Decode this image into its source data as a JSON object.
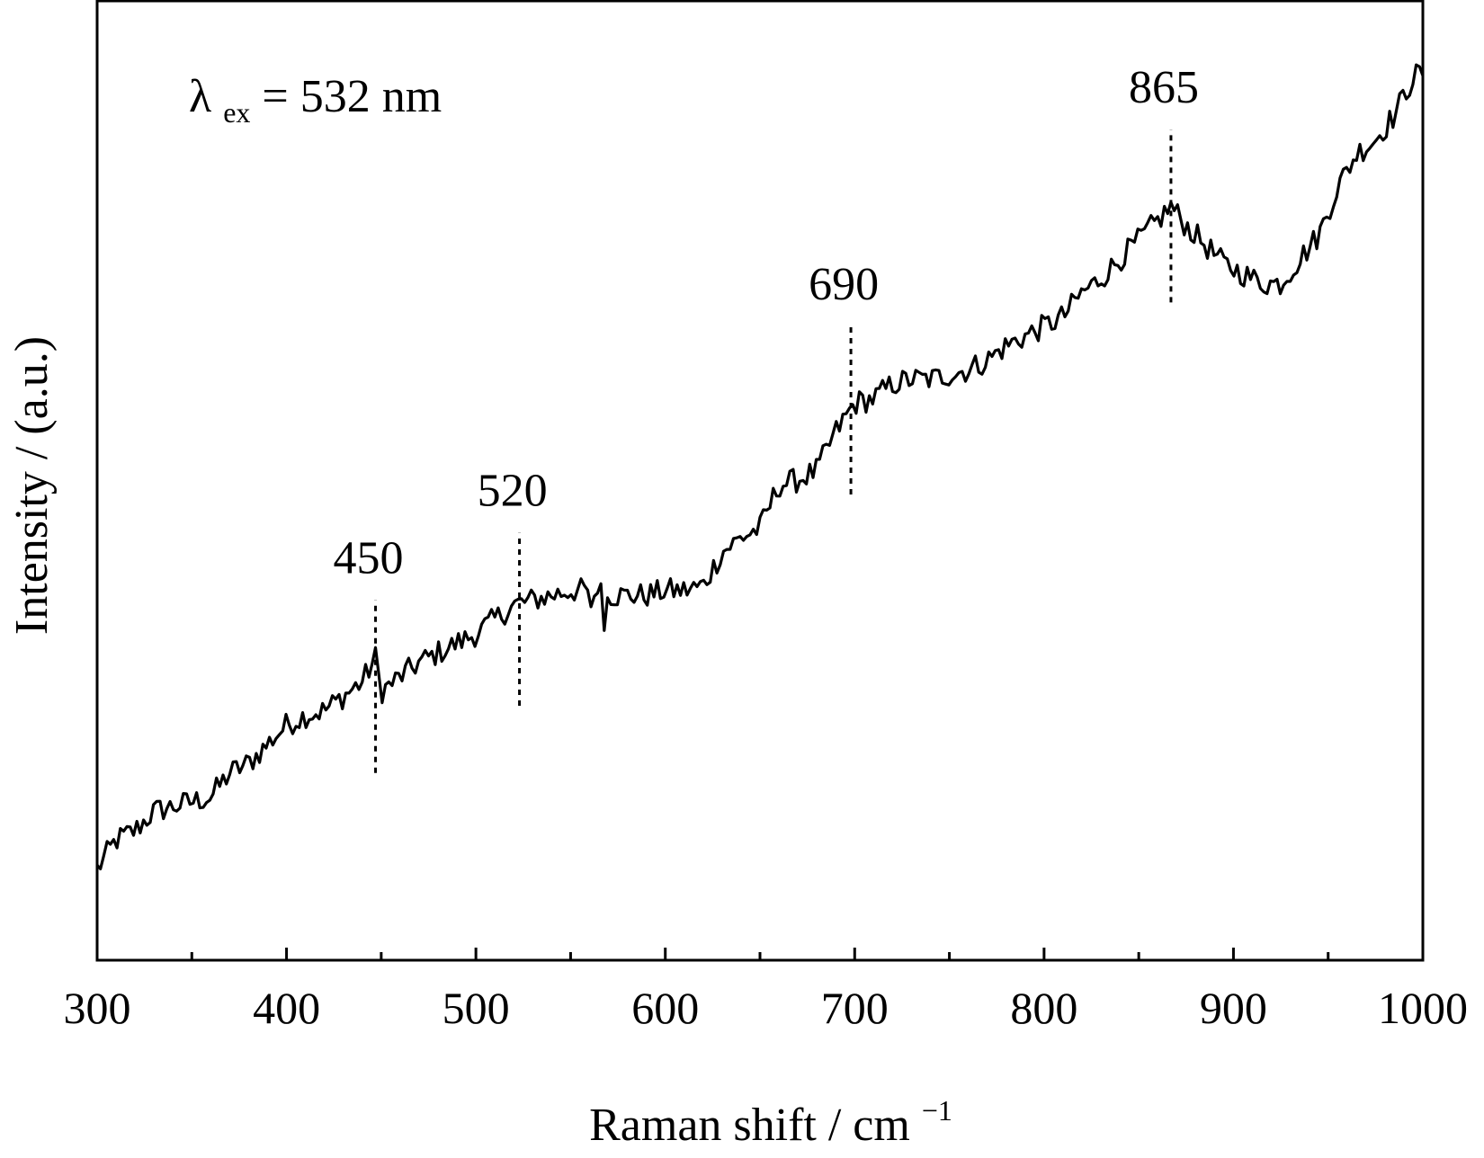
{
  "chart_data": {
    "type": "line",
    "title": "",
    "xlabel": "Raman shift / cm",
    "xlabel_superscript": "−1",
    "ylabel": "Intensity / (a.u.)",
    "xlim": [
      300,
      1000
    ],
    "ylim": [
      0,
      100
    ],
    "y_tick_labels": "none",
    "x_ticks": [
      300,
      400,
      500,
      600,
      700,
      800,
      900,
      1000
    ],
    "x_tick_labels": [
      "300",
      "400",
      "500",
      "600",
      "700",
      "800",
      "900",
      "1000"
    ],
    "x_minor_ticks": [
      350,
      450,
      550,
      650,
      750,
      850,
      950
    ],
    "grid": false,
    "legend": "none",
    "annotation": {
      "symbol": "λ",
      "subscript": "ex",
      "text": "= 532 nm"
    },
    "peak_markers": [
      {
        "x": 447,
        "label": "450",
        "y_low": 19.5,
        "y_high": 37.5
      },
      {
        "x": 523,
        "label": "520",
        "y_low": 26.5,
        "y_high": 44.5
      },
      {
        "x": 698,
        "label": "690",
        "y_low": 48.5,
        "y_high": 66
      },
      {
        "x": 867,
        "label": "865",
        "y_low": 68.5,
        "y_high": 86.5
      }
    ],
    "series": [
      {
        "color": "#000000",
        "points": [
          [
            300,
            9.5
          ],
          [
            310,
            12.5
          ],
          [
            320,
            13.5
          ],
          [
            330,
            15.5
          ],
          [
            340,
            16
          ],
          [
            350,
            16.5
          ],
          [
            360,
            17
          ],
          [
            370,
            19.5
          ],
          [
            380,
            20.5
          ],
          [
            390,
            22.5
          ],
          [
            400,
            24.5
          ],
          [
            410,
            25.5
          ],
          [
            420,
            26
          ],
          [
            430,
            27.5
          ],
          [
            440,
            29
          ],
          [
            447,
            31.5
          ],
          [
            450,
            28
          ],
          [
            460,
            29.5
          ],
          [
            470,
            31
          ],
          [
            480,
            32
          ],
          [
            490,
            33
          ],
          [
            500,
            34
          ],
          [
            510,
            35.5
          ],
          [
            520,
            37
          ],
          [
            530,
            37.5
          ],
          [
            540,
            38
          ],
          [
            550,
            38.5
          ],
          [
            560,
            38.5
          ],
          [
            570,
            38
          ],
          [
            580,
            38
          ],
          [
            590,
            38
          ],
          [
            600,
            38.5
          ],
          [
            610,
            38.5
          ],
          [
            620,
            39
          ],
          [
            630,
            42.5
          ],
          [
            640,
            44
          ],
          [
            650,
            45
          ],
          [
            660,
            49.5
          ],
          [
            670,
            50
          ],
          [
            680,
            51
          ],
          [
            690,
            55
          ],
          [
            700,
            58
          ],
          [
            710,
            58.5
          ],
          [
            720,
            60
          ],
          [
            730,
            60.5
          ],
          [
            740,
            60.5
          ],
          [
            750,
            61
          ],
          [
            760,
            61.5
          ],
          [
            770,
            62.5
          ],
          [
            780,
            64
          ],
          [
            790,
            65
          ],
          [
            800,
            66
          ],
          [
            810,
            67
          ],
          [
            820,
            69.5
          ],
          [
            830,
            71
          ],
          [
            840,
            73
          ],
          [
            850,
            75
          ],
          [
            860,
            77
          ],
          [
            867,
            78.5
          ],
          [
            875,
            76.5
          ],
          [
            885,
            74.5
          ],
          [
            895,
            72.5
          ],
          [
            905,
            71.5
          ],
          [
            915,
            70.5
          ],
          [
            925,
            70.5
          ],
          [
            935,
            73
          ],
          [
            945,
            75.5
          ],
          [
            955,
            80.5
          ],
          [
            965,
            84
          ],
          [
            975,
            85.5
          ],
          [
            985,
            88
          ],
          [
            995,
            92
          ],
          [
            1000,
            92.5
          ]
        ]
      }
    ]
  }
}
